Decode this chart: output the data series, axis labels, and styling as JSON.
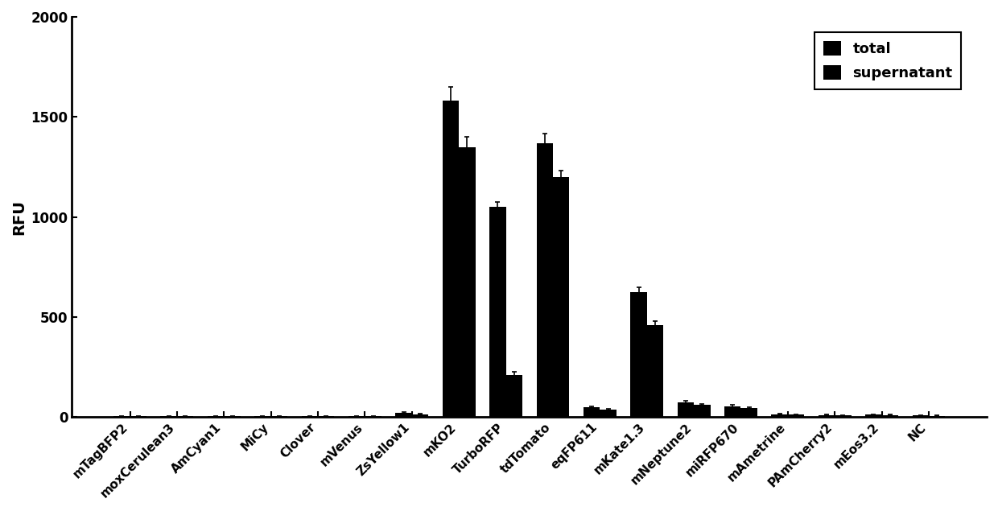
{
  "categories": [
    "mTagBFP2",
    "moxCerulean3",
    "AmCyan1",
    "MiCy",
    "Clover",
    "mVenus",
    "ZsYellow1",
    "mKO2",
    "TurboRFP",
    "tdTomato",
    "eqFP611",
    "mKate1.3",
    "mNeptune2",
    "miRFP670",
    "mAmetrine",
    "PAmCherry2",
    "mEos3.2",
    "NC"
  ],
  "total_values": [
    5,
    5,
    5,
    5,
    5,
    5,
    20,
    1580,
    1050,
    1370,
    50,
    625,
    75,
    55,
    15,
    10,
    12,
    8
  ],
  "total_errors": [
    2,
    2,
    2,
    2,
    2,
    2,
    4,
    70,
    25,
    45,
    5,
    22,
    7,
    7,
    3,
    2,
    3,
    2
  ],
  "supernatant_values": [
    5,
    5,
    5,
    5,
    5,
    5,
    15,
    1350,
    210,
    1200,
    38,
    460,
    62,
    45,
    12,
    8,
    10,
    6
  ],
  "supernatant_errors": [
    2,
    2,
    2,
    2,
    2,
    2,
    3,
    50,
    18,
    30,
    4,
    18,
    5,
    5,
    2,
    2,
    2,
    2
  ],
  "ylabel": "RFU",
  "ylim": [
    0,
    2000
  ],
  "yticks": [
    0,
    500,
    1000,
    1500,
    2000
  ],
  "bar_color": "#000000",
  "legend_labels": [
    "total",
    "supernatant"
  ],
  "bar_width": 0.35,
  "background_color": "#ffffff",
  "figsize": [
    12.4,
    6.35
  ],
  "dpi": 100
}
